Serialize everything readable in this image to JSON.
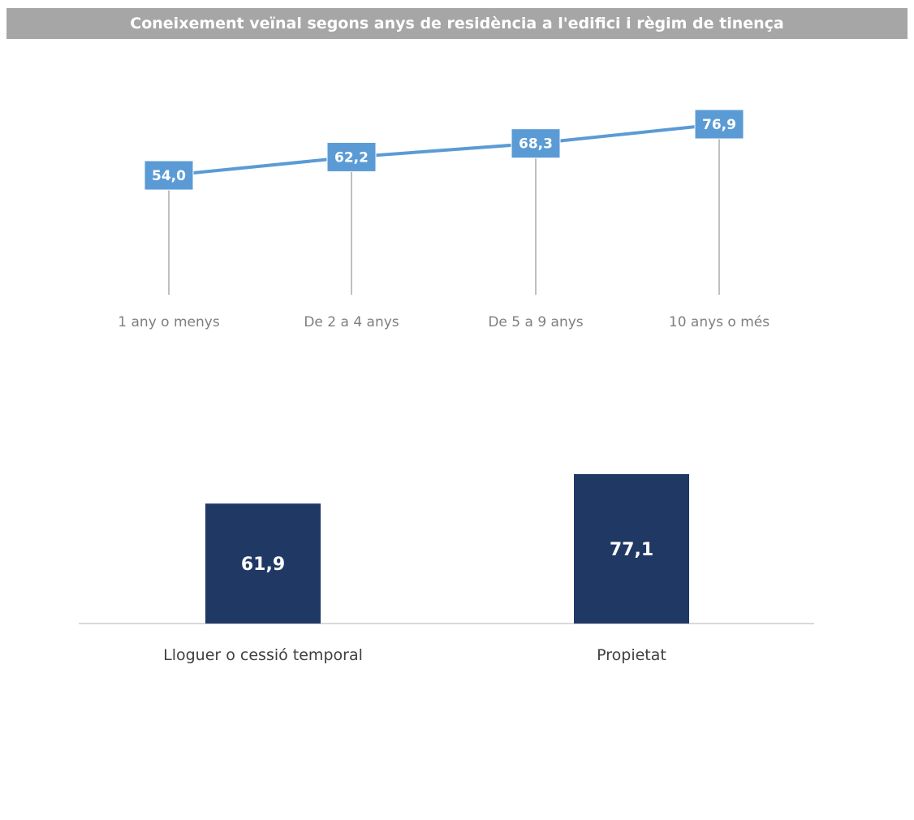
{
  "title": "Coneixement veïnal segons anys de residència a l'edifici i règim de tinença",
  "chart_data": [
    {
      "type": "line",
      "categories": [
        "1 any o menys",
        "De 2 a 4 anys",
        "De 5 a 9 anys",
        "10 anys o més"
      ],
      "values": [
        54.0,
        62.2,
        68.3,
        76.9
      ],
      "value_labels": [
        "54,0",
        "62,2",
        "68,3",
        "76,9"
      ],
      "line_color": "#5b9bd5",
      "label_bg_color": "#5b9bd5",
      "drop_lines": true,
      "grid": false
    },
    {
      "type": "bar",
      "categories": [
        "Lloguer o cessió temporal",
        "Propietat"
      ],
      "values": [
        61.9,
        77.1
      ],
      "value_labels": [
        "61,9",
        "77,1"
      ],
      "bar_color": "#203864",
      "grid": false
    }
  ]
}
